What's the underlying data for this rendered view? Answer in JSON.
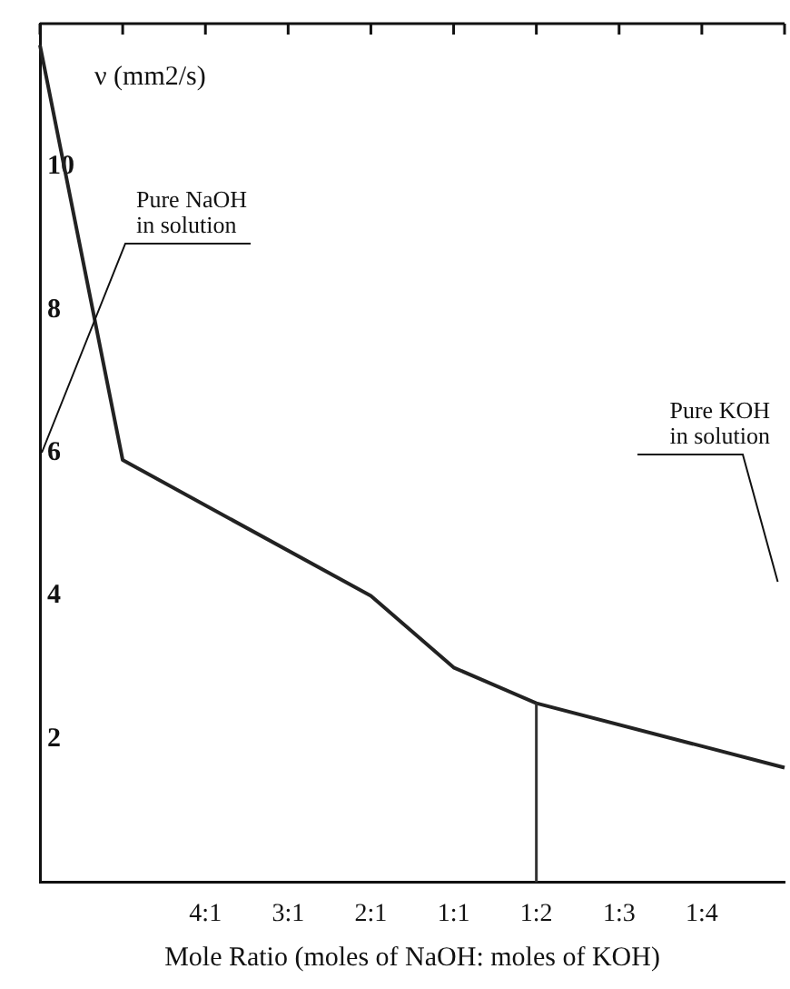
{
  "chart_data": {
    "type": "line",
    "ylabel": "ν (mm2/s)",
    "xlabel": "Mole Ratio (moles of NaOH: moles of KOH)",
    "categories": [
      null,
      null,
      "4:1",
      "3:1",
      "2:1",
      "1:1",
      "1:2",
      "1:3",
      "1:4",
      null
    ],
    "series": [
      {
        "color": "#222222",
        "values": [
          11.7,
          5.9,
          null,
          null,
          4.0,
          3.0,
          2.5,
          null,
          null,
          1.6
        ]
      }
    ],
    "ylim": [
      0,
      12
    ],
    "yticks": [
      2,
      4,
      6,
      8,
      10
    ],
    "ref_lines": [
      {
        "axis": "x",
        "value": "1:2",
        "color": "#333333"
      }
    ],
    "annotations": [
      "Pure NaOH\nin solution",
      "Pure KOH\nin solution"
    ],
    "grid": false,
    "legend": false,
    "marker": "none",
    "line_style": "solid"
  }
}
